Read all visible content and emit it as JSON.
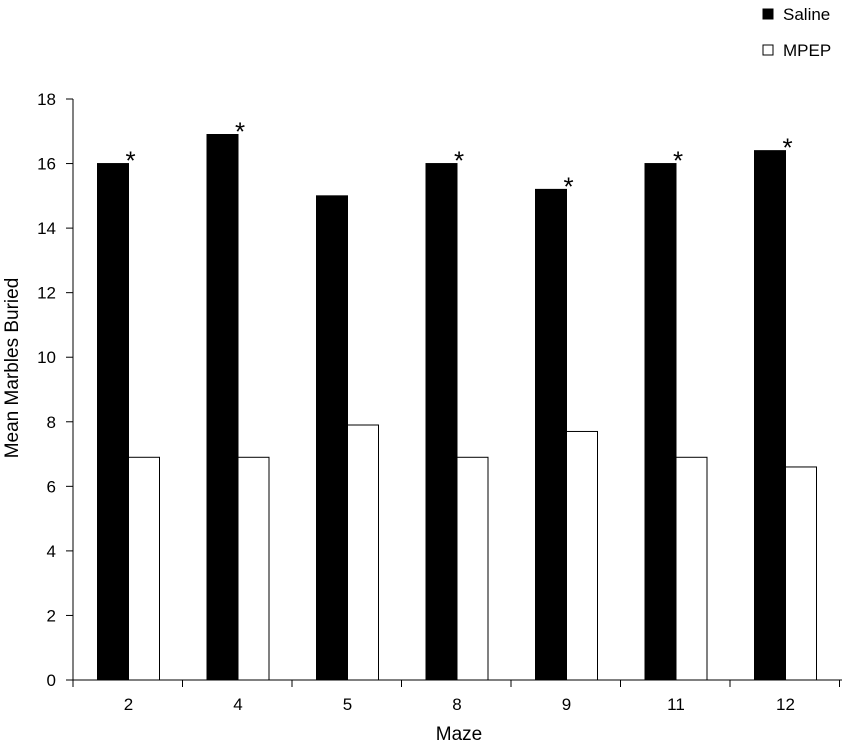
{
  "chart_data": {
    "type": "bar",
    "title": "",
    "xlabel": "Maze",
    "ylabel": "Mean Marbles Buried",
    "categories": [
      "2",
      "4",
      "5",
      "8",
      "9",
      "11",
      "12"
    ],
    "series": [
      {
        "name": "Saline",
        "values": [
          16.0,
          16.9,
          15.0,
          16.0,
          15.2,
          16.0,
          16.4
        ],
        "fill": "#000000"
      },
      {
        "name": "MPEP",
        "values": [
          6.9,
          6.9,
          7.9,
          6.9,
          7.7,
          6.9,
          6.6
        ],
        "fill": "#ffffff"
      }
    ],
    "ylim": [
      0,
      18
    ],
    "yticks": [
      0,
      2,
      4,
      6,
      8,
      10,
      12,
      14,
      16,
      18
    ],
    "grid": false,
    "legend_position": "top-right",
    "annotations": [
      {
        "category": "2",
        "text": "*"
      },
      {
        "category": "4",
        "text": "*"
      },
      {
        "category": "8",
        "text": "*"
      },
      {
        "category": "9",
        "text": "*"
      },
      {
        "category": "11",
        "text": "*"
      },
      {
        "category": "12",
        "text": "*"
      }
    ]
  }
}
